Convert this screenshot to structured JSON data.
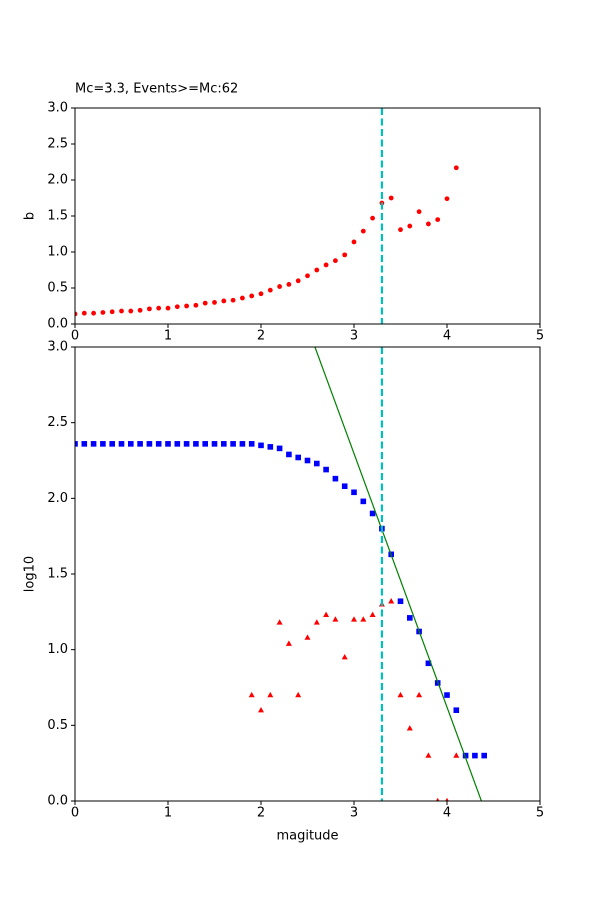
{
  "chart_data": [
    {
      "type": "scatter",
      "title": "Mc=3.3, Events>=Mc:62",
      "y_label": "b",
      "xlim": [
        0,
        5
      ],
      "xticks": [
        0,
        1,
        2,
        3,
        4,
        5
      ],
      "ylim": [
        0,
        3
      ],
      "yticks": [
        {
          "value": 0,
          "label": "0.0"
        },
        {
          "value": 0.5,
          "label": "0.5"
        },
        {
          "value": 1,
          "label": "1.0"
        },
        {
          "value": 1.5,
          "label": "1.5"
        },
        {
          "value": 2,
          "label": "2.0"
        },
        {
          "value": 2.5,
          "label": "2.5"
        },
        {
          "value": 3,
          "label": "3.0"
        }
      ],
      "vline": 3.3,
      "vline_color": "#00bfbf",
      "series": [
        {
          "color": "#ff0000",
          "marker": "circle",
          "x": [
            0,
            0.1,
            0.2,
            0.3,
            0.4,
            0.5,
            0.6,
            0.7,
            0.8,
            0.9,
            1.0,
            1.1,
            1.2,
            1.3,
            1.4,
            1.5,
            1.6,
            1.7,
            1.8,
            1.9,
            2.0,
            2.1,
            2.2,
            2.3,
            2.4,
            2.5,
            2.6,
            2.7,
            2.8,
            2.9,
            3.0,
            3.1,
            3.2,
            3.3,
            3.4,
            3.5,
            3.6,
            3.7,
            3.8,
            3.9,
            4.0,
            4.1
          ],
          "values": [
            0.14,
            0.15,
            0.15,
            0.16,
            0.17,
            0.18,
            0.18,
            0.19,
            0.21,
            0.22,
            0.22,
            0.24,
            0.25,
            0.26,
            0.29,
            0.3,
            0.32,
            0.33,
            0.36,
            0.39,
            0.42,
            0.47,
            0.52,
            0.55,
            0.6,
            0.67,
            0.75,
            0.82,
            0.88,
            0.96,
            1.14,
            1.29,
            1.47,
            1.68,
            1.75,
            1.31,
            1.36,
            1.56,
            1.39,
            1.45,
            1.74,
            2.17
          ]
        }
      ]
    },
    {
      "type": "scatter",
      "y_label": "log10",
      "x_label": "magitude",
      "xlim": [
        0,
        5
      ],
      "xticks": [
        0,
        1,
        2,
        3,
        4,
        5
      ],
      "ylim": [
        0,
        3
      ],
      "yticks": [
        {
          "value": 0,
          "label": "0.0"
        },
        {
          "value": 0.5,
          "label": "0.5"
        },
        {
          "value": 1,
          "label": "1.0"
        },
        {
          "value": 1.5,
          "label": "1.5"
        },
        {
          "value": 2,
          "label": "2.0"
        },
        {
          "value": 2.5,
          "label": "2.5"
        },
        {
          "value": 3,
          "label": "3.0"
        }
      ],
      "vline": 3.3,
      "vline_color": "#00bfbf",
      "series": [
        {
          "color": "#0000ff",
          "marker": "square",
          "x": [
            0,
            0.1,
            0.2,
            0.3,
            0.4,
            0.5,
            0.6,
            0.7,
            0.8,
            0.9,
            1.0,
            1.1,
            1.2,
            1.3,
            1.4,
            1.5,
            1.6,
            1.7,
            1.8,
            1.9,
            2.0,
            2.1,
            2.2,
            2.3,
            2.4,
            2.5,
            2.6,
            2.7,
            2.8,
            2.9,
            3.0,
            3.1,
            3.2,
            3.3,
            3.4,
            3.5,
            3.6,
            3.7,
            3.8,
            3.9,
            4.0,
            4.1,
            4.2,
            4.3,
            4.4
          ],
          "values": [
            2.36,
            2.36,
            2.36,
            2.36,
            2.36,
            2.36,
            2.36,
            2.36,
            2.36,
            2.36,
            2.36,
            2.36,
            2.36,
            2.36,
            2.36,
            2.36,
            2.36,
            2.36,
            2.36,
            2.36,
            2.35,
            2.34,
            2.33,
            2.29,
            2.27,
            2.25,
            2.23,
            2.19,
            2.13,
            2.08,
            2.04,
            1.98,
            1.9,
            1.8,
            1.63,
            1.32,
            1.21,
            1.12,
            0.91,
            0.78,
            0.7,
            0.6,
            0.3,
            0.3,
            0.3
          ]
        },
        {
          "color": "#ff0000",
          "marker": "triangle",
          "x": [
            1.9,
            2.0,
            2.1,
            2.2,
            2.3,
            2.4,
            2.5,
            2.6,
            2.7,
            2.8,
            2.9,
            3.0,
            3.1,
            3.2,
            3.3,
            3.4,
            3.5,
            3.6,
            3.7,
            3.8,
            3.9,
            4.0,
            4.1
          ],
          "values": [
            0.7,
            0.6,
            0.7,
            1.18,
            1.04,
            0.7,
            1.08,
            1.18,
            1.23,
            1.2,
            0.95,
            1.2,
            1.2,
            1.23,
            1.3,
            1.32,
            0.7,
            0.48,
            0.7,
            0.3,
            0,
            0,
            0.3
          ]
        },
        {
          "color": "#008000",
          "marker": "line",
          "x": [
            2.58,
            4.37
          ],
          "values": [
            3,
            0
          ]
        }
      ]
    }
  ]
}
